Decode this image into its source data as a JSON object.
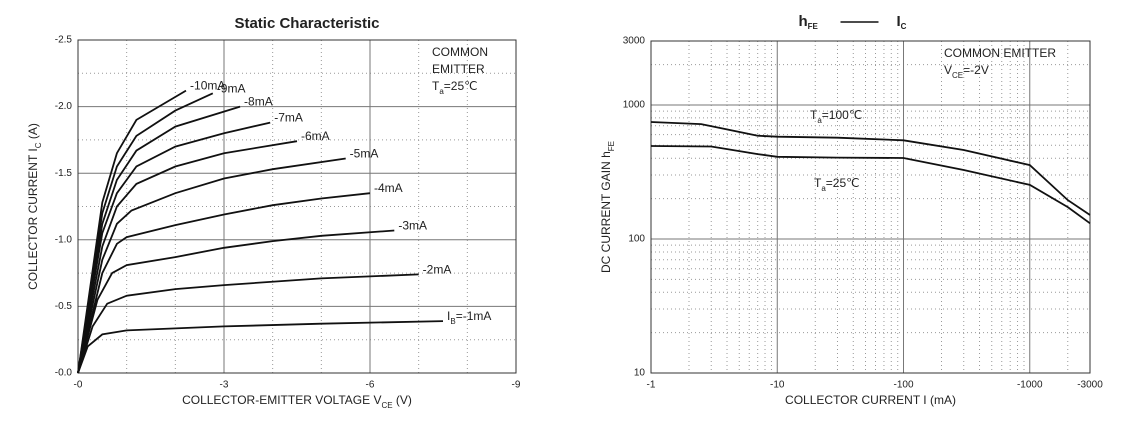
{
  "chart_data": [
    {
      "type": "line",
      "title": [
        {
          "t": "Static Characteristic"
        }
      ],
      "xlabel": [
        {
          "t": "COLLECTOR-EMITTER VOLTAGE    V"
        },
        {
          "t": "CE",
          "sub": true
        },
        {
          "t": "   (V)"
        }
      ],
      "ylabel": [
        {
          "t": "COLLECTOR CURRENT    I"
        },
        {
          "t": "C",
          "sub": true
        },
        {
          "t": " (A)"
        }
      ],
      "xlim": [
        0,
        -9
      ],
      "ylim": [
        0,
        -2.5
      ],
      "xticks": [
        {
          "value": 0,
          "label": "-0"
        },
        -3,
        -6,
        -9
      ],
      "yticks": [
        {
          "value": 0,
          "label": "-0.0"
        },
        -0.5,
        {
          "value": -1,
          "label": "-1.0"
        },
        -1.5,
        {
          "value": -2,
          "label": "-2.0"
        },
        -2.5
      ],
      "x_minor_ticks": [
        -1,
        -2,
        -4,
        -5,
        -7,
        -8
      ],
      "y_minor_ticks": [
        -0.25,
        -0.75,
        -1.25,
        -1.75,
        -2.25
      ],
      "grid": true,
      "color": "#111111",
      "annotations": [
        [
          {
            "t": "COMMON"
          }
        ],
        [
          {
            "t": "EMITTER"
          }
        ],
        [
          {
            "t": "T"
          },
          {
            "t": "a",
            "sub": true
          },
          {
            "t": "=25℃"
          }
        ]
      ],
      "series": [
        {
          "name": [
            {
              "t": "I"
            },
            {
              "t": "B",
              "sub": true
            },
            {
              "t": "=-1mA"
            }
          ],
          "x": [
            0,
            -0.2,
            -0.5,
            -1,
            -3,
            -5,
            -7.5
          ],
          "values": [
            0,
            -0.2,
            -0.29,
            -0.32,
            -0.35,
            -0.37,
            -0.39
          ]
        },
        {
          "name": [
            {
              "t": "-2mA"
            }
          ],
          "x": [
            0,
            -0.3,
            -0.6,
            -1,
            -2,
            -3,
            -5,
            -7
          ],
          "values": [
            0,
            -0.35,
            -0.52,
            -0.58,
            -0.63,
            -0.66,
            -0.71,
            -0.74
          ]
        },
        {
          "name": [
            {
              "t": "-3mA"
            }
          ],
          "x": [
            0,
            -0.4,
            -0.7,
            -1,
            -2,
            -3,
            -4,
            -5,
            -6.5
          ],
          "values": [
            0,
            -0.55,
            -0.75,
            -0.81,
            -0.87,
            -0.94,
            -0.99,
            -1.03,
            -1.07
          ]
        },
        {
          "name": [
            {
              "t": "-4mA"
            }
          ],
          "x": [
            0,
            -0.5,
            -0.8,
            -1,
            -2,
            -3,
            -4,
            -5,
            -6
          ],
          "values": [
            0,
            -0.75,
            -0.97,
            -1.02,
            -1.11,
            -1.19,
            -1.26,
            -1.31,
            -1.35
          ]
        },
        {
          "name": [
            {
              "t": "-5mA"
            }
          ],
          "x": [
            0,
            -0.5,
            -0.8,
            -1.1,
            -2,
            -3,
            -4,
            -5.5
          ],
          "values": [
            0,
            -0.85,
            -1.12,
            -1.22,
            -1.35,
            -1.46,
            -1.53,
            -1.61
          ]
        },
        {
          "name": [
            {
              "t": "-6mA"
            }
          ],
          "x": [
            0,
            -0.5,
            -0.8,
            -1.2,
            -2,
            -3,
            -4.5
          ],
          "values": [
            0,
            -0.95,
            -1.25,
            -1.42,
            -1.55,
            -1.65,
            -1.74
          ]
        },
        {
          "name": [
            {
              "t": "-7mA"
            }
          ],
          "x": [
            0,
            -0.5,
            -0.8,
            -1.2,
            -2,
            -3,
            -3.95
          ],
          "values": [
            0,
            -1.05,
            -1.35,
            -1.55,
            -1.7,
            -1.8,
            -1.88
          ]
        },
        {
          "name": [
            {
              "t": "-8mA"
            }
          ],
          "x": [
            0,
            -0.5,
            -0.8,
            -1.2,
            -2,
            -3.33
          ],
          "values": [
            0,
            -1.12,
            -1.45,
            -1.67,
            -1.85,
            -2.0
          ]
        },
        {
          "name": [
            {
              "t": "-9mA"
            }
          ],
          "x": [
            0,
            -0.5,
            -0.8,
            -1.2,
            -2,
            -2.77
          ],
          "values": [
            0,
            -1.2,
            -1.55,
            -1.78,
            -1.97,
            -2.1
          ]
        },
        {
          "name": [
            {
              "t": "-10mA"
            }
          ],
          "x": [
            0,
            -0.5,
            -0.8,
            -1.2,
            -2.22
          ],
          "values": [
            0,
            -1.28,
            -1.65,
            -1.9,
            -2.12
          ]
        }
      ]
    },
    {
      "type": "line",
      "title": [
        {
          "t": "h"
        },
        {
          "t": "FE",
          "sub": true
        }
      ],
      "title_right": [
        {
          "t": "I"
        },
        {
          "t": "C",
          "sub": true
        }
      ],
      "xlabel": [
        {
          "t": "COLLECTOR CURRENT I (mA)"
        }
      ],
      "ylabel": [
        {
          "t": "DC CURRENT GAIN h"
        },
        {
          "t": "FE",
          "sub": true
        }
      ],
      "xscale": "log",
      "yscale": "log",
      "xlim": [
        -1,
        -3000
      ],
      "ylim": [
        10,
        3000
      ],
      "xticks": [
        -1,
        -10,
        -100,
        -1000,
        -3000
      ],
      "yticks": [
        10,
        100,
        1000,
        3000
      ],
      "x_minor_ticks": [
        -2,
        -3,
        -4,
        -5,
        -6,
        -7,
        -8,
        -9,
        -20,
        -30,
        -40,
        -50,
        -60,
        -70,
        -80,
        -90,
        -200,
        -300,
        -400,
        -500,
        -600,
        -700,
        -800,
        -900,
        -2000
      ],
      "y_minor_ticks": [
        20,
        30,
        40,
        50,
        60,
        70,
        80,
        90,
        200,
        300,
        400,
        500,
        600,
        700,
        800,
        900,
        2000
      ],
      "grid": true,
      "color": "#111111",
      "annotations": [
        [
          {
            "t": "COMMON EMITTER"
          }
        ],
        [
          {
            "t": "V"
          },
          {
            "t": "CE",
            "sub": true
          },
          {
            "t": "=-2V"
          }
        ],
        [
          {
            "t": "T"
          },
          {
            "t": "a",
            "sub": true
          },
          {
            "t": "=100℃"
          }
        ],
        [
          {
            "t": "T"
          },
          {
            "t": "a",
            "sub": true
          },
          {
            "t": "=25℃"
          }
        ]
      ],
      "series": [
        {
          "x": [
            -1,
            -2.5,
            -7,
            -10,
            -30,
            -100,
            -300,
            -1000,
            -2000,
            -3000
          ],
          "values": [
            746,
            720,
            590,
            580,
            570,
            545,
            461,
            356,
            195,
            151
          ]
        },
        {
          "x": [
            -1,
            -3,
            -7,
            -10,
            -30,
            -100,
            -300,
            -1000,
            -2000,
            -3000
          ],
          "values": [
            494,
            490,
            430,
            410,
            405,
            402,
            327,
            253,
            173,
            131
          ]
        }
      ]
    }
  ]
}
